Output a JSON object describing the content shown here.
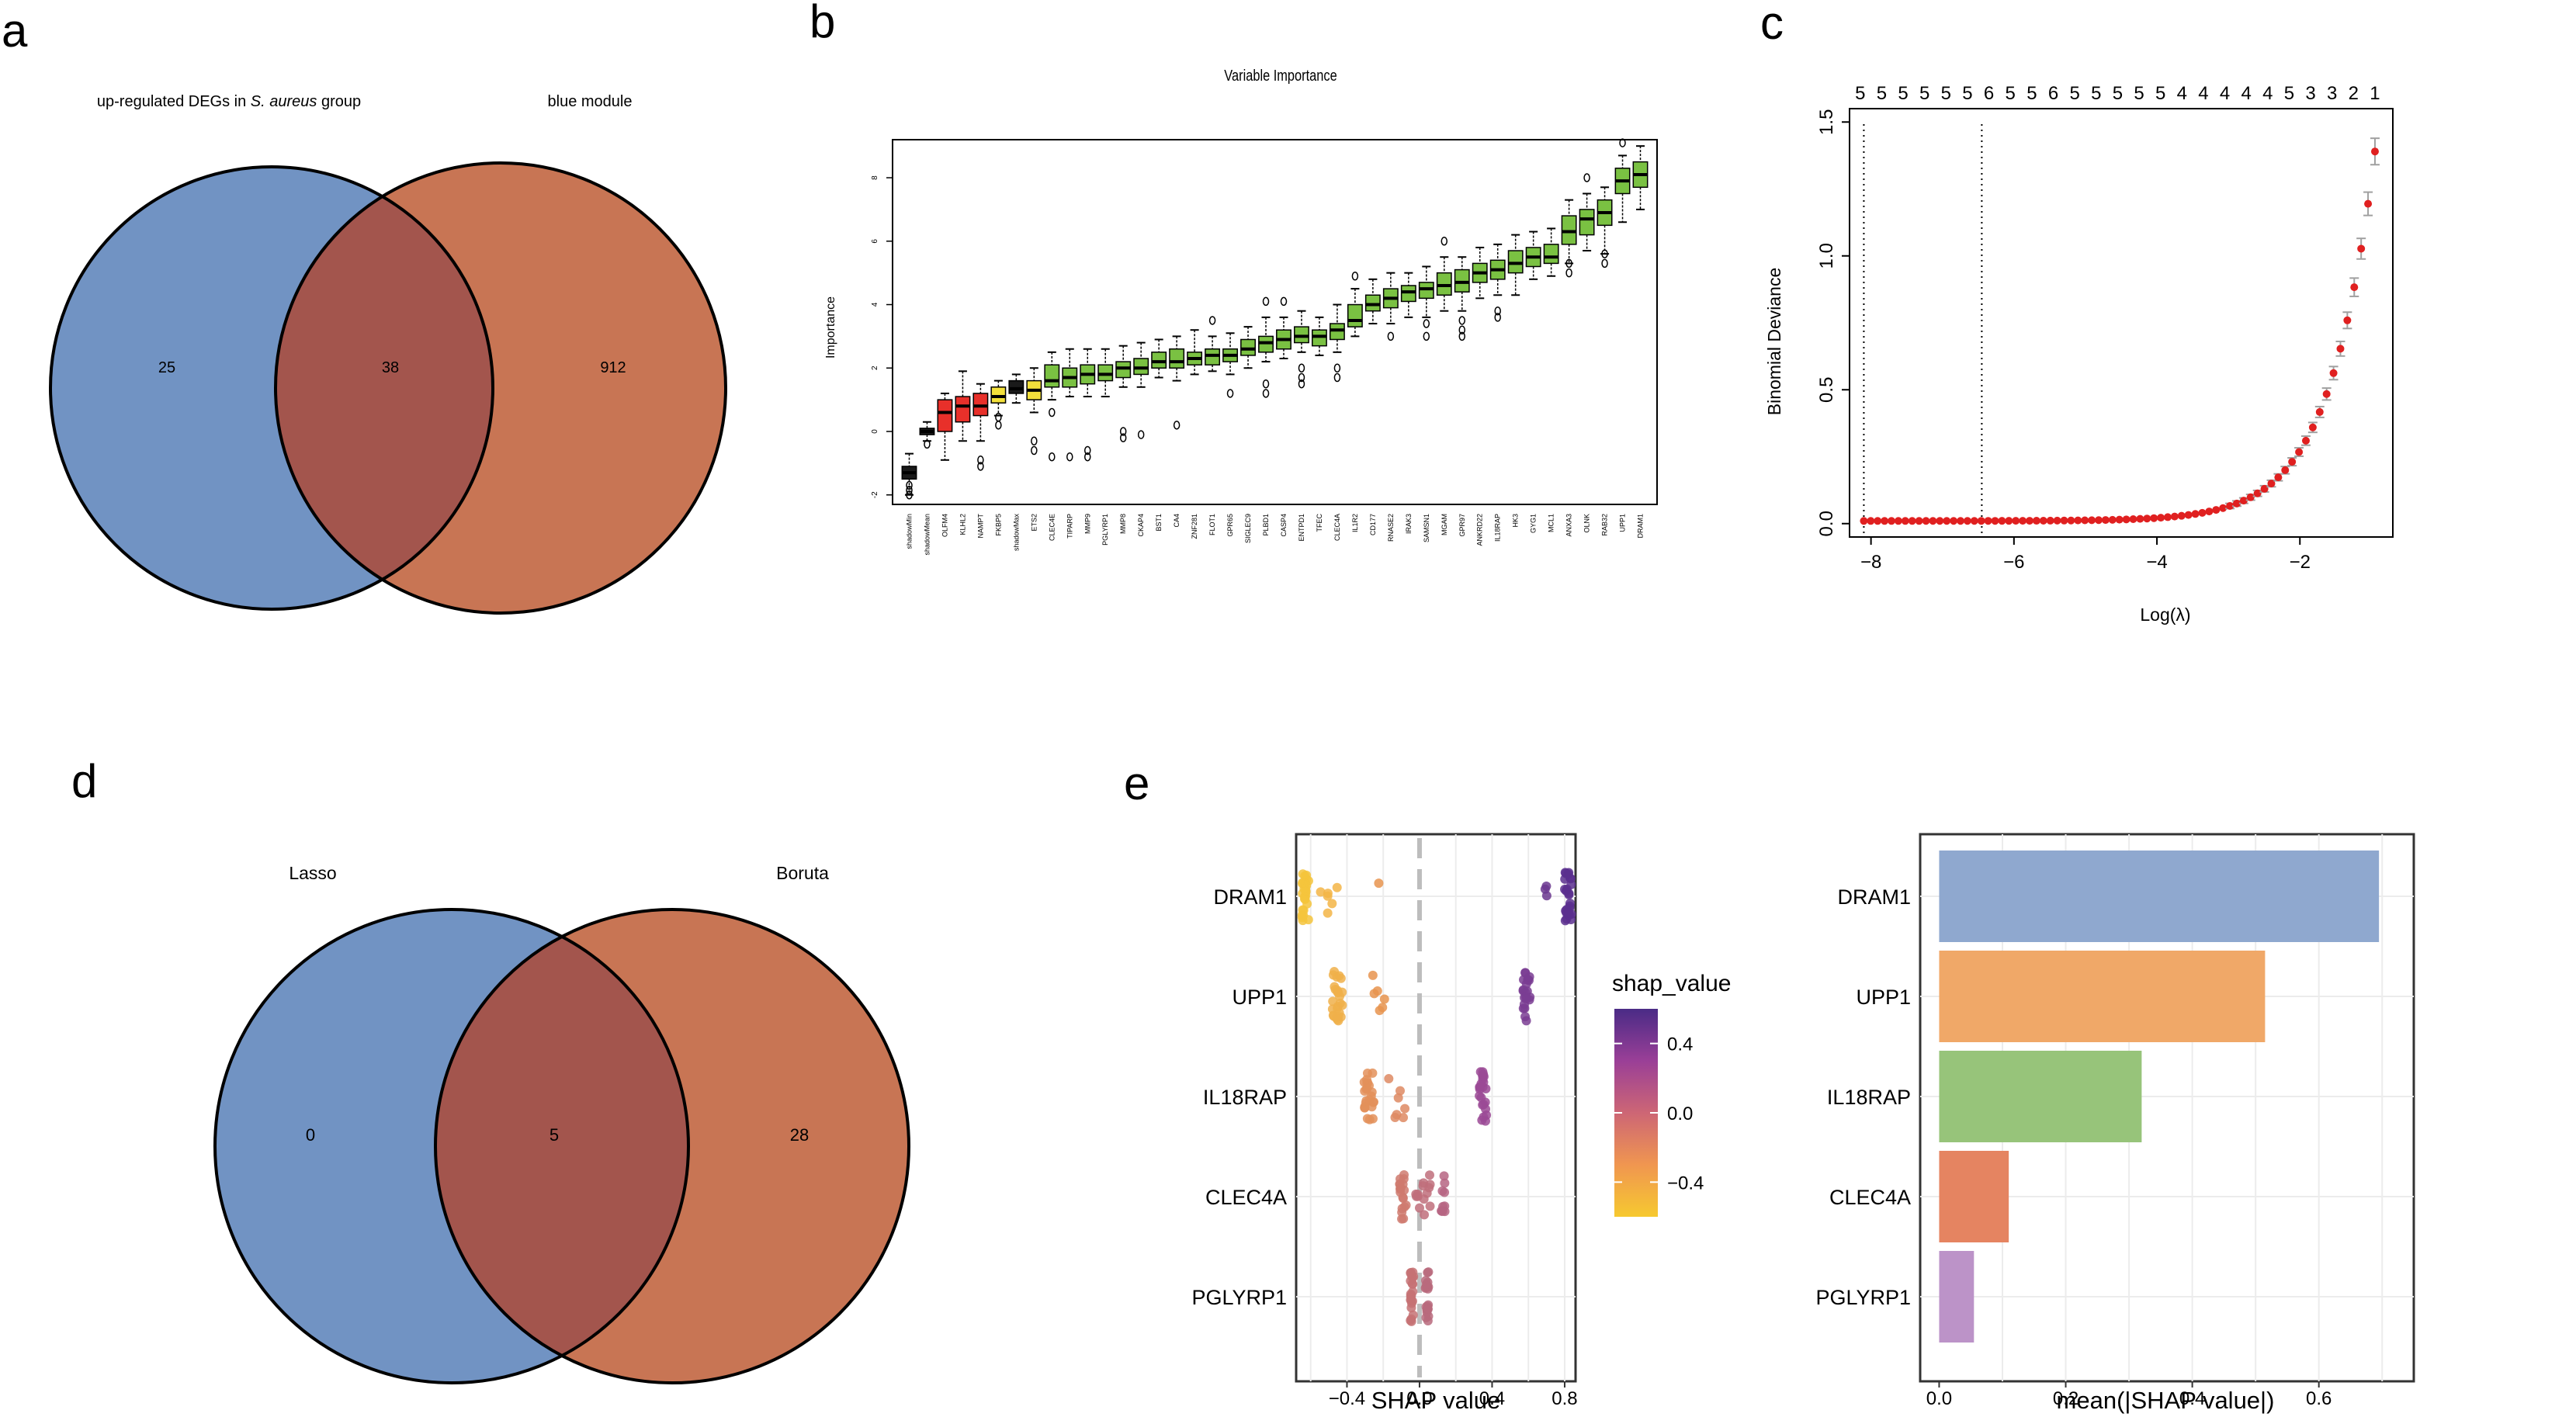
{
  "panels": {
    "a": "a",
    "b": "b",
    "c": "c",
    "d": "d",
    "e": "e"
  },
  "chart_data": [
    {
      "panel": "a",
      "type": "venn",
      "sets": [
        {
          "name": "up-regulated DEGs in S. aureus group",
          "label_plain": "up-regulated DEGs in ",
          "label_italic": "S. aureus",
          "label_suffix": " group",
          "only": 25,
          "color": "#7193c3"
        },
        {
          "name": "blue module",
          "label_plain": "blue module",
          "only": 912,
          "color": "#c87554"
        }
      ],
      "intersection": 38,
      "intersection_color": "#a3554d"
    },
    {
      "panel": "b",
      "type": "boxplot",
      "title": "Variable Importance",
      "ylabel": "Importance",
      "ylim": [
        -2.3,
        9.2
      ],
      "yticks": [
        -2,
        0,
        2,
        4,
        6,
        8
      ],
      "colors": {
        "shadow": "#1a1a1a",
        "rejected": "#e8302a",
        "tentative": "#f3e03b",
        "confirmed": "#7ac142"
      },
      "boxes": [
        {
          "name": "shadowMin",
          "class": "shadow",
          "min": -2.0,
          "q1": -1.5,
          "median": -1.3,
          "q3": -1.1,
          "max": -0.7,
          "outliers": [
            -1.7,
            -1.85,
            -2.0
          ]
        },
        {
          "name": "shadowMean",
          "class": "shadow",
          "min": -0.3,
          "q1": -0.1,
          "median": 0.0,
          "q3": 0.1,
          "max": 0.3,
          "outliers": [
            -0.4
          ]
        },
        {
          "name": "OLFM4",
          "class": "rejected",
          "min": -0.9,
          "q1": 0.0,
          "median": 0.6,
          "q3": 1.0,
          "max": 1.2,
          "outliers": []
        },
        {
          "name": "KLHL2",
          "class": "rejected",
          "min": -0.3,
          "q1": 0.3,
          "median": 0.8,
          "q3": 1.1,
          "max": 1.9,
          "outliers": []
        },
        {
          "name": "NAMPT",
          "class": "rejected",
          "min": -0.3,
          "q1": 0.5,
          "median": 0.8,
          "q3": 1.2,
          "max": 1.5,
          "outliers": [
            -0.9,
            -1.1
          ]
        },
        {
          "name": "FKBP5",
          "class": "tentative",
          "min": 0.5,
          "q1": 0.9,
          "median": 1.1,
          "q3": 1.4,
          "max": 1.6,
          "outliers": [
            0.2,
            0.45
          ]
        },
        {
          "name": "shadowMax",
          "class": "shadow",
          "min": 0.9,
          "q1": 1.2,
          "median": 1.35,
          "q3": 1.6,
          "max": 1.8,
          "outliers": []
        },
        {
          "name": "ETS2",
          "class": "tentative",
          "min": 0.6,
          "q1": 1.0,
          "median": 1.3,
          "q3": 1.6,
          "max": 2.0,
          "outliers": [
            -0.6,
            -0.3
          ]
        },
        {
          "name": "CLEC4E",
          "class": "confirmed",
          "min": 1.0,
          "q1": 1.4,
          "median": 1.6,
          "q3": 2.1,
          "max": 2.5,
          "outliers": [
            0.6,
            -0.8
          ]
        },
        {
          "name": "TIPARP",
          "class": "confirmed",
          "min": 1.1,
          "q1": 1.4,
          "median": 1.7,
          "q3": 2.0,
          "max": 2.6,
          "outliers": [
            -0.8
          ]
        },
        {
          "name": "MMP9",
          "class": "confirmed",
          "min": 1.1,
          "q1": 1.5,
          "median": 1.8,
          "q3": 2.1,
          "max": 2.6,
          "outliers": [
            -0.6,
            -0.8
          ]
        },
        {
          "name": "PGLYRP1",
          "class": "confirmed",
          "min": 1.1,
          "q1": 1.6,
          "median": 1.8,
          "q3": 2.1,
          "max": 2.6,
          "outliers": []
        },
        {
          "name": "MMP8",
          "class": "confirmed",
          "min": 1.4,
          "q1": 1.7,
          "median": 2.0,
          "q3": 2.2,
          "max": 2.7,
          "outliers": [
            0.0,
            -0.2
          ]
        },
        {
          "name": "CKAP4",
          "class": "confirmed",
          "min": 1.4,
          "q1": 1.8,
          "median": 2.0,
          "q3": 2.3,
          "max": 2.8,
          "outliers": [
            -0.1
          ]
        },
        {
          "name": "BST1",
          "class": "confirmed",
          "min": 1.7,
          "q1": 2.0,
          "median": 2.2,
          "q3": 2.5,
          "max": 2.9,
          "outliers": []
        },
        {
          "name": "CA4",
          "class": "confirmed",
          "min": 1.6,
          "q1": 2.0,
          "median": 2.2,
          "q3": 2.6,
          "max": 3.0,
          "outliers": [
            0.2
          ]
        },
        {
          "name": "ZNF281",
          "class": "confirmed",
          "min": 1.8,
          "q1": 2.1,
          "median": 2.3,
          "q3": 2.5,
          "max": 3.2,
          "outliers": []
        },
        {
          "name": "FLOT1",
          "class": "confirmed",
          "min": 1.9,
          "q1": 2.1,
          "median": 2.4,
          "q3": 2.6,
          "max": 3.0,
          "outliers": [
            3.5
          ]
        },
        {
          "name": "GPR65",
          "class": "confirmed",
          "min": 1.8,
          "q1": 2.2,
          "median": 2.4,
          "q3": 2.6,
          "max": 3.1,
          "outliers": [
            1.2
          ]
        },
        {
          "name": "SIGLEC9",
          "class": "confirmed",
          "min": 2.0,
          "q1": 2.4,
          "median": 2.6,
          "q3": 2.9,
          "max": 3.3,
          "outliers": []
        },
        {
          "name": "PLBD1",
          "class": "confirmed",
          "min": 2.2,
          "q1": 2.5,
          "median": 2.8,
          "q3": 3.0,
          "max": 3.6,
          "outliers": [
            1.2,
            1.5,
            4.1
          ]
        },
        {
          "name": "CASP4",
          "class": "confirmed",
          "min": 2.3,
          "q1": 2.6,
          "median": 2.9,
          "q3": 3.2,
          "max": 3.6,
          "outliers": [
            4.1
          ]
        },
        {
          "name": "ENTPD1",
          "class": "confirmed",
          "min": 2.5,
          "q1": 2.8,
          "median": 3.0,
          "q3": 3.3,
          "max": 3.8,
          "outliers": [
            2.0,
            1.7,
            1.5
          ]
        },
        {
          "name": "TFEC",
          "class": "confirmed",
          "min": 2.4,
          "q1": 2.7,
          "median": 3.0,
          "q3": 3.2,
          "max": 3.6,
          "outliers": []
        },
        {
          "name": "CLEC4A",
          "class": "confirmed",
          "min": 2.5,
          "q1": 2.9,
          "median": 3.2,
          "q3": 3.4,
          "max": 4.0,
          "outliers": [
            2.0,
            1.7
          ]
        },
        {
          "name": "IL1R2",
          "class": "confirmed",
          "min": 3.0,
          "q1": 3.3,
          "median": 3.5,
          "q3": 4.0,
          "max": 4.5,
          "outliers": [
            4.9
          ]
        },
        {
          "name": "CD177",
          "class": "confirmed",
          "min": 3.4,
          "q1": 3.8,
          "median": 4.0,
          "q3": 4.3,
          "max": 4.8,
          "outliers": []
        },
        {
          "name": "RNASE2",
          "class": "confirmed",
          "min": 3.4,
          "q1": 3.9,
          "median": 4.2,
          "q3": 4.5,
          "max": 5.0,
          "outliers": [
            3.0
          ]
        },
        {
          "name": "IRAK3",
          "class": "confirmed",
          "min": 3.6,
          "q1": 4.1,
          "median": 4.4,
          "q3": 4.6,
          "max": 5.0,
          "outliers": []
        },
        {
          "name": "SAMSN1",
          "class": "confirmed",
          "min": 3.6,
          "q1": 4.2,
          "median": 4.5,
          "q3": 4.7,
          "max": 5.2,
          "outliers": [
            3.4,
            3.0
          ]
        },
        {
          "name": "MGAM",
          "class": "confirmed",
          "min": 3.8,
          "q1": 4.3,
          "median": 4.6,
          "q3": 5.0,
          "max": 5.5,
          "outliers": [
            6.0
          ]
        },
        {
          "name": "GPR97",
          "class": "confirmed",
          "min": 3.8,
          "q1": 4.4,
          "median": 4.7,
          "q3": 5.1,
          "max": 5.5,
          "outliers": [
            3.5,
            3.2,
            3.0
          ]
        },
        {
          "name": "ANKRD22",
          "class": "confirmed",
          "min": 4.2,
          "q1": 4.7,
          "median": 5.0,
          "q3": 5.3,
          "max": 5.8,
          "outliers": []
        },
        {
          "name": "IL18RAP",
          "class": "confirmed",
          "min": 4.3,
          "q1": 4.8,
          "median": 5.1,
          "q3": 5.4,
          "max": 5.9,
          "outliers": [
            3.8,
            3.6
          ]
        },
        {
          "name": "HK3",
          "class": "confirmed",
          "min": 4.3,
          "q1": 5.0,
          "median": 5.3,
          "q3": 5.7,
          "max": 6.2,
          "outliers": []
        },
        {
          "name": "GYG1",
          "class": "confirmed",
          "min": 4.8,
          "q1": 5.2,
          "median": 5.5,
          "q3": 5.8,
          "max": 6.3,
          "outliers": []
        },
        {
          "name": "MCL1",
          "class": "confirmed",
          "min": 4.9,
          "q1": 5.3,
          "median": 5.5,
          "q3": 5.9,
          "max": 6.4,
          "outliers": []
        },
        {
          "name": "ANXA3",
          "class": "confirmed",
          "min": 5.3,
          "q1": 5.9,
          "median": 6.3,
          "q3": 6.8,
          "max": 7.3,
          "outliers": [
            5.0,
            5.3
          ]
        },
        {
          "name": "OLNK",
          "class": "confirmed",
          "min": 5.7,
          "q1": 6.2,
          "median": 6.7,
          "q3": 7.0,
          "max": 7.5,
          "outliers": [
            8.0
          ]
        },
        {
          "name": "RAB32",
          "class": "confirmed",
          "min": 5.6,
          "q1": 6.5,
          "median": 6.9,
          "q3": 7.3,
          "max": 7.7,
          "outliers": [
            5.3,
            5.6
          ]
        },
        {
          "name": "UPP1",
          "class": "confirmed",
          "min": 6.6,
          "q1": 7.5,
          "median": 7.9,
          "q3": 8.3,
          "max": 8.7,
          "outliers": [
            9.1
          ]
        },
        {
          "name": "DRAM1",
          "class": "confirmed",
          "min": 7.0,
          "q1": 7.7,
          "median": 8.1,
          "q3": 8.5,
          "max": 9.0,
          "outliers": []
        }
      ]
    },
    {
      "panel": "c",
      "type": "line",
      "xlabel": "Log(λ)",
      "ylabel": "Binomial Deviance",
      "xlim": [
        -8.3,
        -0.7
      ],
      "ylim": [
        -0.05,
        1.55
      ],
      "xticks": [
        -8,
        -6,
        -4,
        -2
      ],
      "xtick_labels": [
        "−8",
        "−6",
        "−4",
        "−2"
      ],
      "yticks": [
        0.0,
        0.5,
        1.0,
        1.5
      ],
      "ytick_labels": [
        "0.0",
        "0.5",
        "1.0",
        "1.5"
      ],
      "top_axis_counts": [
        "5",
        "5",
        "5",
        "5",
        "5",
        "5",
        "6",
        "5",
        "5",
        "6",
        "5",
        "5",
        "5",
        "5",
        "5",
        "4",
        "4",
        "4",
        "4",
        "4",
        "5",
        "3",
        "3",
        "2",
        "1"
      ],
      "top_axis_range": [
        -8.15,
        -0.95
      ],
      "vlines": [
        -8.1,
        -6.45
      ],
      "curve": {
        "x_start": -8.1,
        "x_end": -0.95,
        "base": 0.01,
        "amplitude": 1.38,
        "rate": 1.58,
        "n_points": 75
      },
      "point_color": "#e02020",
      "errorbar_color": "#a0a0a0"
    },
    {
      "panel": "d",
      "type": "venn",
      "sets": [
        {
          "name": "Lasso",
          "label_plain": "Lasso",
          "only": 0,
          "color": "#7193c3"
        },
        {
          "name": "Boruta",
          "label_plain": "Boruta",
          "only": 28,
          "color": "#c87554"
        }
      ],
      "intersection": 5,
      "intersection_color": "#a3554d"
    },
    {
      "panel": "e",
      "type": "scatter",
      "subtype": "shap_beeswarm",
      "xlabel": "SHAP value",
      "xlim": [
        -0.68,
        0.86
      ],
      "xticks": [
        -0.4,
        0.0,
        0.4,
        0.8
      ],
      "xtick_labels": [
        "−0.4",
        "0.0",
        "0.4",
        "0.8"
      ],
      "features": [
        "DRAM1",
        "UPP1",
        "IL18RAP",
        "CLEC4A",
        "PGLYRP1"
      ],
      "clusters": [
        {
          "feature": "DRAM1",
          "center": -0.63,
          "spread": 0.02,
          "n": 28,
          "color": "#f4c43c"
        },
        {
          "feature": "DRAM1",
          "center": -0.5,
          "spread": 0.05,
          "n": 6,
          "color": "#f3b547"
        },
        {
          "feature": "DRAM1",
          "center": -0.22,
          "spread": 0.01,
          "n": 1,
          "color": "#e8944f"
        },
        {
          "feature": "DRAM1",
          "center": 0.82,
          "spread": 0.02,
          "n": 26,
          "color": "#5b2f8e"
        },
        {
          "feature": "DRAM1",
          "center": 0.71,
          "spread": 0.02,
          "n": 3,
          "color": "#6b378f"
        },
        {
          "feature": "UPP1",
          "center": -0.45,
          "spread": 0.03,
          "n": 26,
          "color": "#f0b04a"
        },
        {
          "feature": "UPP1",
          "center": -0.25,
          "spread": 0.06,
          "n": 6,
          "color": "#e8944f"
        },
        {
          "feature": "UPP1",
          "center": 0.59,
          "spread": 0.02,
          "n": 22,
          "color": "#7a3d93"
        },
        {
          "feature": "IL18RAP",
          "center": -0.28,
          "spread": 0.03,
          "n": 24,
          "color": "#e3915a"
        },
        {
          "feature": "IL18RAP",
          "center": -0.12,
          "spread": 0.06,
          "n": 7,
          "color": "#de8a63"
        },
        {
          "feature": "IL18RAP",
          "center": 0.35,
          "spread": 0.02,
          "n": 24,
          "color": "#9b4a95"
        },
        {
          "feature": "CLEC4A",
          "center": -0.09,
          "spread": 0.02,
          "n": 20,
          "color": "#cf7a6e"
        },
        {
          "feature": "CLEC4A",
          "center": 0.03,
          "spread": 0.05,
          "n": 14,
          "color": "#c06f7b"
        },
        {
          "feature": "CLEC4A",
          "center": 0.13,
          "spread": 0.01,
          "n": 10,
          "color": "#b66582"
        },
        {
          "feature": "PGLYRP1",
          "center": -0.04,
          "spread": 0.01,
          "n": 22,
          "color": "#c57274"
        },
        {
          "feature": "PGLYRP1",
          "center": 0.04,
          "spread": 0.01,
          "n": 22,
          "color": "#b86a7d"
        }
      ],
      "legend": {
        "title": "shap_value",
        "ticks": [
          0.4,
          0.0,
          -0.4
        ],
        "tick_labels": [
          "0.4",
          "0.0",
          "−0.4"
        ],
        "range": [
          -0.6,
          0.6
        ],
        "colors": [
          "#f6c930",
          "#f09650",
          "#cd6675",
          "#9a3f97",
          "#4a2b86"
        ]
      }
    },
    {
      "panel": "e",
      "type": "bar",
      "orientation": "horizontal",
      "xlabel": "mean(|SHAP value|)",
      "xlim": [
        -0.03,
        0.75
      ],
      "xticks": [
        0.0,
        0.2,
        0.4,
        0.6
      ],
      "xtick_labels": [
        "0.0",
        "0.2",
        "0.4",
        "0.6"
      ],
      "categories": [
        "DRAM1",
        "UPP1",
        "IL18RAP",
        "CLEC4A",
        "PGLYRP1"
      ],
      "values": [
        0.695,
        0.515,
        0.32,
        0.11,
        0.055
      ],
      "colors": [
        "#8fa8cf",
        "#f0a868",
        "#97c47a",
        "#e58461",
        "#bc93c8"
      ]
    }
  ]
}
